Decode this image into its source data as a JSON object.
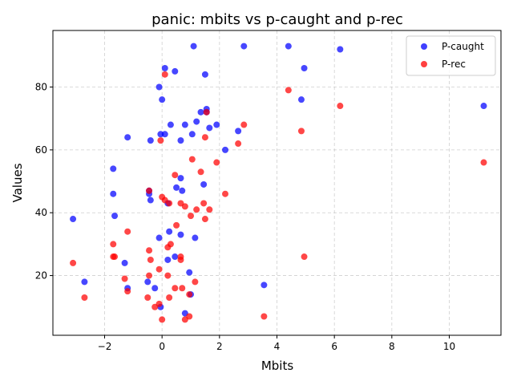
{
  "chart_data": {
    "type": "scatter",
    "title": "panic: mbits vs p-caught and p-rec",
    "xlabel": "Mbits",
    "ylabel": "Values",
    "xlim": [
      -3.8,
      11.8
    ],
    "ylim": [
      1,
      98
    ],
    "xticks": [
      -2,
      0,
      2,
      4,
      6,
      8,
      10
    ],
    "xtick_labels": [
      "−2",
      "0",
      "2",
      "4",
      "6",
      "8",
      "10"
    ],
    "yticks": [
      20,
      40,
      60,
      80
    ],
    "ytick_labels": [
      "20",
      "40",
      "60",
      "80"
    ],
    "grid": true,
    "legend_position": "top-right",
    "series": [
      {
        "name": "P-caught",
        "color": "#0000ff",
        "points": [
          [
            -3.1,
            38
          ],
          [
            -2.7,
            18
          ],
          [
            -1.7,
            54
          ],
          [
            -1.7,
            46
          ],
          [
            -1.65,
            39
          ],
          [
            -1.3,
            24
          ],
          [
            -1.2,
            64
          ],
          [
            -1.2,
            16
          ],
          [
            -0.5,
            18
          ],
          [
            -0.45,
            46
          ],
          [
            -0.45,
            47
          ],
          [
            -0.4,
            44
          ],
          [
            -0.4,
            63
          ],
          [
            -0.25,
            16
          ],
          [
            -0.1,
            80
          ],
          [
            -0.1,
            32
          ],
          [
            -0.05,
            65
          ],
          [
            -0.05,
            10
          ],
          [
            0.0,
            76
          ],
          [
            0.1,
            86
          ],
          [
            0.1,
            65
          ],
          [
            0.2,
            25
          ],
          [
            0.2,
            43
          ],
          [
            0.25,
            34
          ],
          [
            0.3,
            68
          ],
          [
            0.45,
            85
          ],
          [
            0.45,
            26
          ],
          [
            0.5,
            48
          ],
          [
            0.65,
            63
          ],
          [
            0.65,
            51
          ],
          [
            0.65,
            33
          ],
          [
            0.7,
            47
          ],
          [
            0.8,
            68
          ],
          [
            0.8,
            8
          ],
          [
            0.95,
            21
          ],
          [
            1.0,
            14
          ],
          [
            1.05,
            65
          ],
          [
            1.1,
            93
          ],
          [
            1.15,
            32
          ],
          [
            1.2,
            69
          ],
          [
            1.35,
            72
          ],
          [
            1.45,
            49
          ],
          [
            1.5,
            84
          ],
          [
            1.55,
            72
          ],
          [
            1.55,
            73
          ],
          [
            1.65,
            67
          ],
          [
            1.9,
            68
          ],
          [
            2.2,
            60
          ],
          [
            2.65,
            66
          ],
          [
            2.85,
            93
          ],
          [
            3.55,
            17
          ],
          [
            4.4,
            93
          ],
          [
            4.85,
            76
          ],
          [
            4.95,
            86
          ],
          [
            6.2,
            92
          ],
          [
            11.2,
            74
          ]
        ]
      },
      {
        "name": "P-rec",
        "color": "#ff0000",
        "points": [
          [
            -3.1,
            24
          ],
          [
            -2.7,
            13
          ],
          [
            -1.7,
            30
          ],
          [
            -1.7,
            26
          ],
          [
            -1.65,
            26
          ],
          [
            -1.3,
            19
          ],
          [
            -1.2,
            34
          ],
          [
            -1.2,
            15
          ],
          [
            -0.5,
            13
          ],
          [
            -0.45,
            20
          ],
          [
            -0.45,
            28
          ],
          [
            -0.45,
            47
          ],
          [
            -0.4,
            25
          ],
          [
            -0.25,
            10
          ],
          [
            -0.1,
            11
          ],
          [
            -0.1,
            22
          ],
          [
            -0.05,
            63
          ],
          [
            0.0,
            45
          ],
          [
            0.0,
            6
          ],
          [
            0.1,
            84
          ],
          [
            0.1,
            44
          ],
          [
            0.2,
            20
          ],
          [
            0.2,
            29
          ],
          [
            0.25,
            43
          ],
          [
            0.25,
            13
          ],
          [
            0.3,
            30
          ],
          [
            0.45,
            52
          ],
          [
            0.45,
            16
          ],
          [
            0.5,
            36
          ],
          [
            0.65,
            25
          ],
          [
            0.65,
            26
          ],
          [
            0.65,
            43
          ],
          [
            0.7,
            16
          ],
          [
            0.8,
            42
          ],
          [
            0.8,
            6
          ],
          [
            0.95,
            7
          ],
          [
            0.95,
            14
          ],
          [
            1.0,
            39
          ],
          [
            1.05,
            57
          ],
          [
            1.15,
            18
          ],
          [
            1.2,
            41
          ],
          [
            1.35,
            53
          ],
          [
            1.45,
            43
          ],
          [
            1.5,
            64
          ],
          [
            1.5,
            38
          ],
          [
            1.55,
            72
          ],
          [
            1.65,
            41
          ],
          [
            1.9,
            56
          ],
          [
            2.2,
            46
          ],
          [
            2.65,
            62
          ],
          [
            2.85,
            68
          ],
          [
            3.55,
            7
          ],
          [
            4.4,
            79
          ],
          [
            4.85,
            66
          ],
          [
            4.95,
            26
          ],
          [
            6.2,
            74
          ],
          [
            11.2,
            56
          ]
        ]
      }
    ]
  }
}
